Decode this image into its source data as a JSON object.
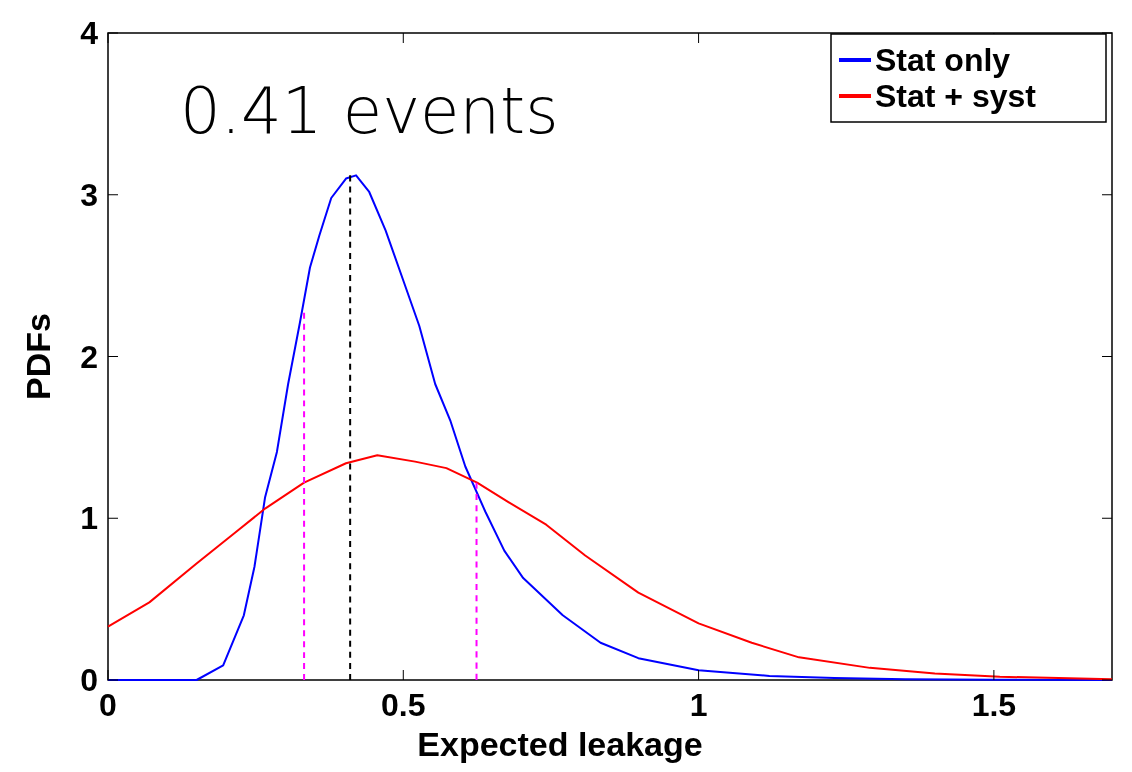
{
  "chart_data": {
    "type": "line",
    "xlabel": "Expected leakage",
    "ylabel": "PDFs",
    "annotations": [
      "0.41 events"
    ],
    "xlim": [
      0,
      1.7
    ],
    "xticks": [
      0,
      0.5,
      1,
      1.5
    ],
    "ylim": [
      0,
      4
    ],
    "yticks": [
      0,
      1,
      2,
      3,
      4
    ],
    "grid": false,
    "legend": "top right",
    "marker": "none",
    "line_style": "solid",
    "series": [
      {
        "name": "Stat only",
        "color": "#0000ff",
        "x": [
          0,
          0.15,
          0.195,
          0.23,
          0.248,
          0.266,
          0.286,
          0.305,
          0.325,
          0.342,
          0.358,
          0.378,
          0.403,
          0.42,
          0.442,
          0.47,
          0.5,
          0.527,
          0.554,
          0.58,
          0.605,
          0.639,
          0.671,
          0.703,
          0.77,
          0.834,
          0.898,
          1.0,
          1.12,
          1.23,
          1.35,
          1.5,
          1.7
        ],
        "values": [
          0,
          0,
          0.09,
          0.4,
          0.7,
          1.13,
          1.41,
          1.83,
          2.21,
          2.55,
          2.75,
          2.98,
          3.1,
          3.12,
          3.02,
          2.78,
          2.47,
          2.19,
          1.83,
          1.6,
          1.32,
          1.04,
          0.8,
          0.63,
          0.4,
          0.23,
          0.135,
          0.06,
          0.025,
          0.012,
          0.005,
          0.002,
          0
        ]
      },
      {
        "name": "Stat + syst",
        "color": "#ff0000",
        "x": [
          0,
          0.07,
          0.15,
          0.215,
          0.266,
          0.332,
          0.403,
          0.456,
          0.52,
          0.573,
          0.625,
          0.678,
          0.742,
          0.808,
          0.898,
          1.0,
          1.09,
          1.17,
          1.29,
          1.4,
          1.51,
          1.7
        ],
        "values": [
          0.33,
          0.48,
          0.72,
          0.91,
          1.06,
          1.22,
          1.34,
          1.39,
          1.35,
          1.31,
          1.22,
          1.1,
          0.96,
          0.77,
          0.54,
          0.35,
          0.23,
          0.14,
          0.075,
          0.04,
          0.02,
          0.005
        ]
      },
      {
        "color": "#ff00ff",
        "line_style": "dashed",
        "x": [
          0.332,
          0.332
        ],
        "values": [
          0,
          2.27
        ]
      },
      {
        "color": "#000000",
        "line_style": "dashed",
        "x": [
          0.41,
          0.41
        ],
        "values": [
          0,
          3.12
        ]
      },
      {
        "color": "#ff00ff",
        "line_style": "dashed",
        "x": [
          0.624,
          0.624
        ],
        "values": [
          0,
          1.22
        ]
      }
    ]
  }
}
